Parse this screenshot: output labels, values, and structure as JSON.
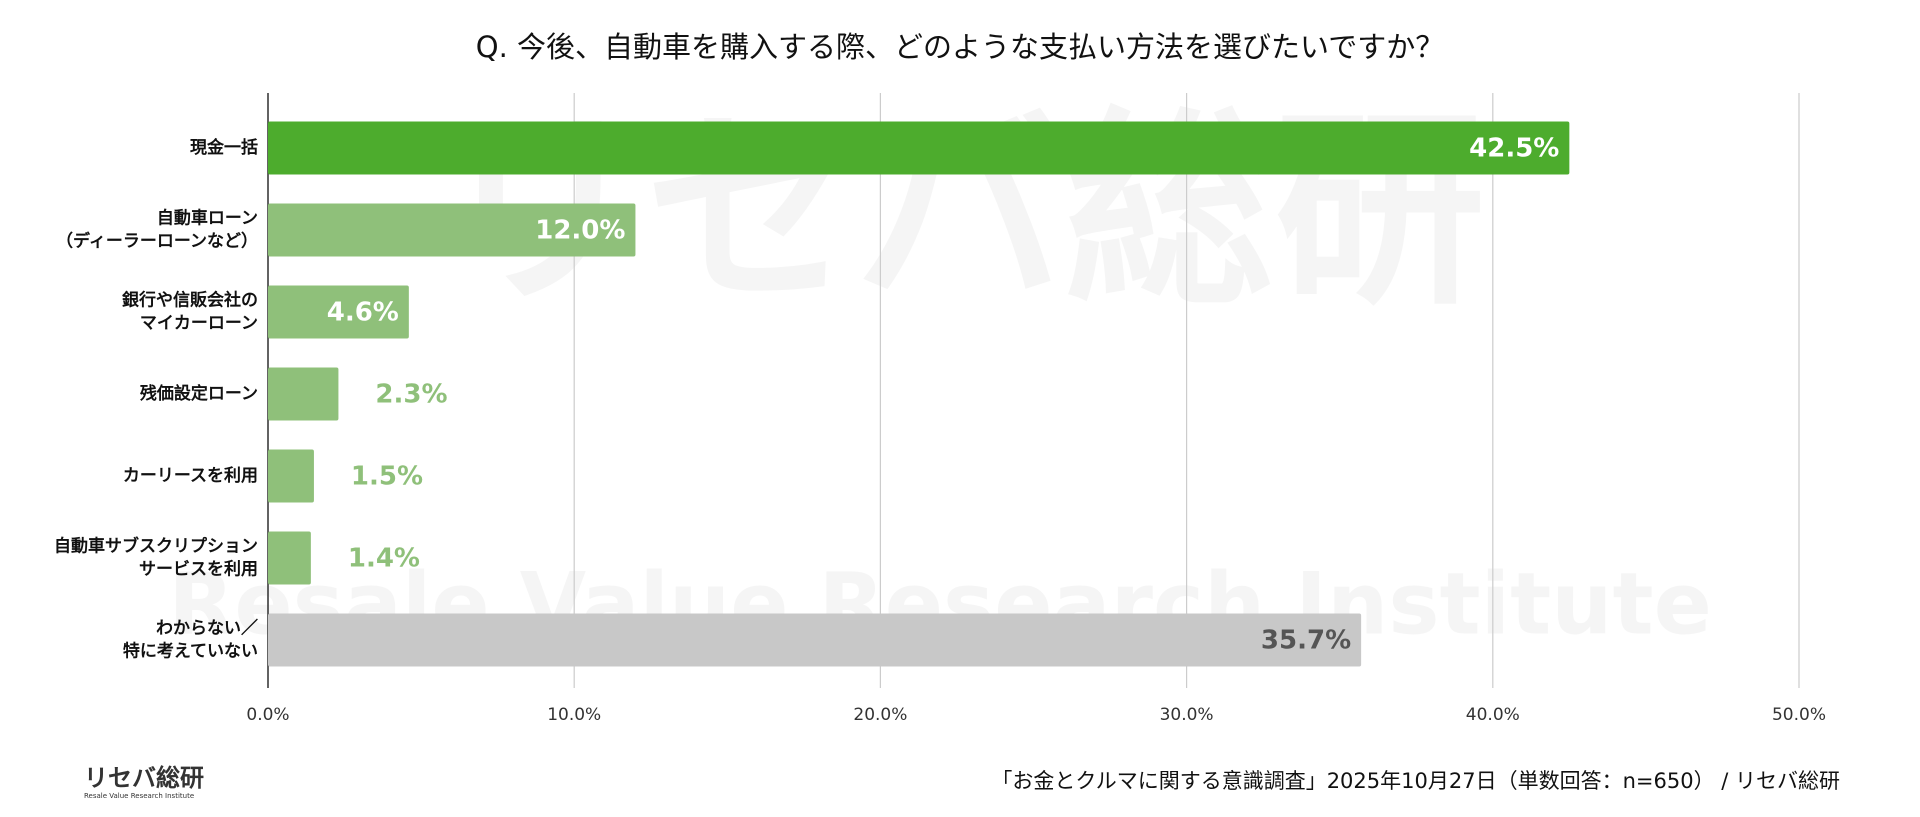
{
  "chart_data": {
    "type": "barh",
    "title": "Q. 今後、自動車を購入する際、どのような支払い方法を選びたいですか？",
    "categories": [
      [
        "現金一括"
      ],
      [
        "自動車ローン",
        "（ディーラーローンなど）"
      ],
      [
        "銀行や信販会社の",
        "マイカーローン"
      ],
      [
        "残価設定ローン"
      ],
      [
        "カーリースを利用"
      ],
      [
        "自動車サブスクリプション",
        "サービスを利用"
      ],
      [
        "わからない／",
        "特に考えていない"
      ]
    ],
    "values": [
      42.5,
      12.0,
      4.6,
      2.3,
      1.5,
      1.4,
      35.7
    ],
    "value_labels": [
      "42.5%",
      "12.0%",
      "4.6%",
      "2.3%",
      "1.5%",
      "1.4%",
      "35.7%"
    ],
    "colors": [
      "#4dac2d",
      "#8fc07a",
      "#8fc07a",
      "#8fc07a",
      "#8fc07a",
      "#8fc07a",
      "#c8c8c8"
    ],
    "value_label_colors": [
      "#ffffff",
      "#ffffff",
      "#ffffff",
      "#8fc07a",
      "#8fc07a",
      "#8fc07a",
      "#555555"
    ],
    "xlim": [
      0,
      50
    ],
    "xticks": [
      {
        "value": 0,
        "label": "0.0%"
      },
      {
        "value": 10,
        "label": "10.0%"
      },
      {
        "value": 20,
        "label": "20.0%"
      },
      {
        "value": 30,
        "label": "30.0%"
      },
      {
        "value": 40,
        "label": "40.0%"
      },
      {
        "value": 50,
        "label": "50.0%"
      }
    ],
    "grid": true,
    "source": "「お金とクルマに関する意識調査」2025年10月27日（単数回答：n=650） / リセバ総研",
    "logo": {
      "name": "リセバ総研",
      "subtitle": "Resale Value Research Institute"
    }
  }
}
